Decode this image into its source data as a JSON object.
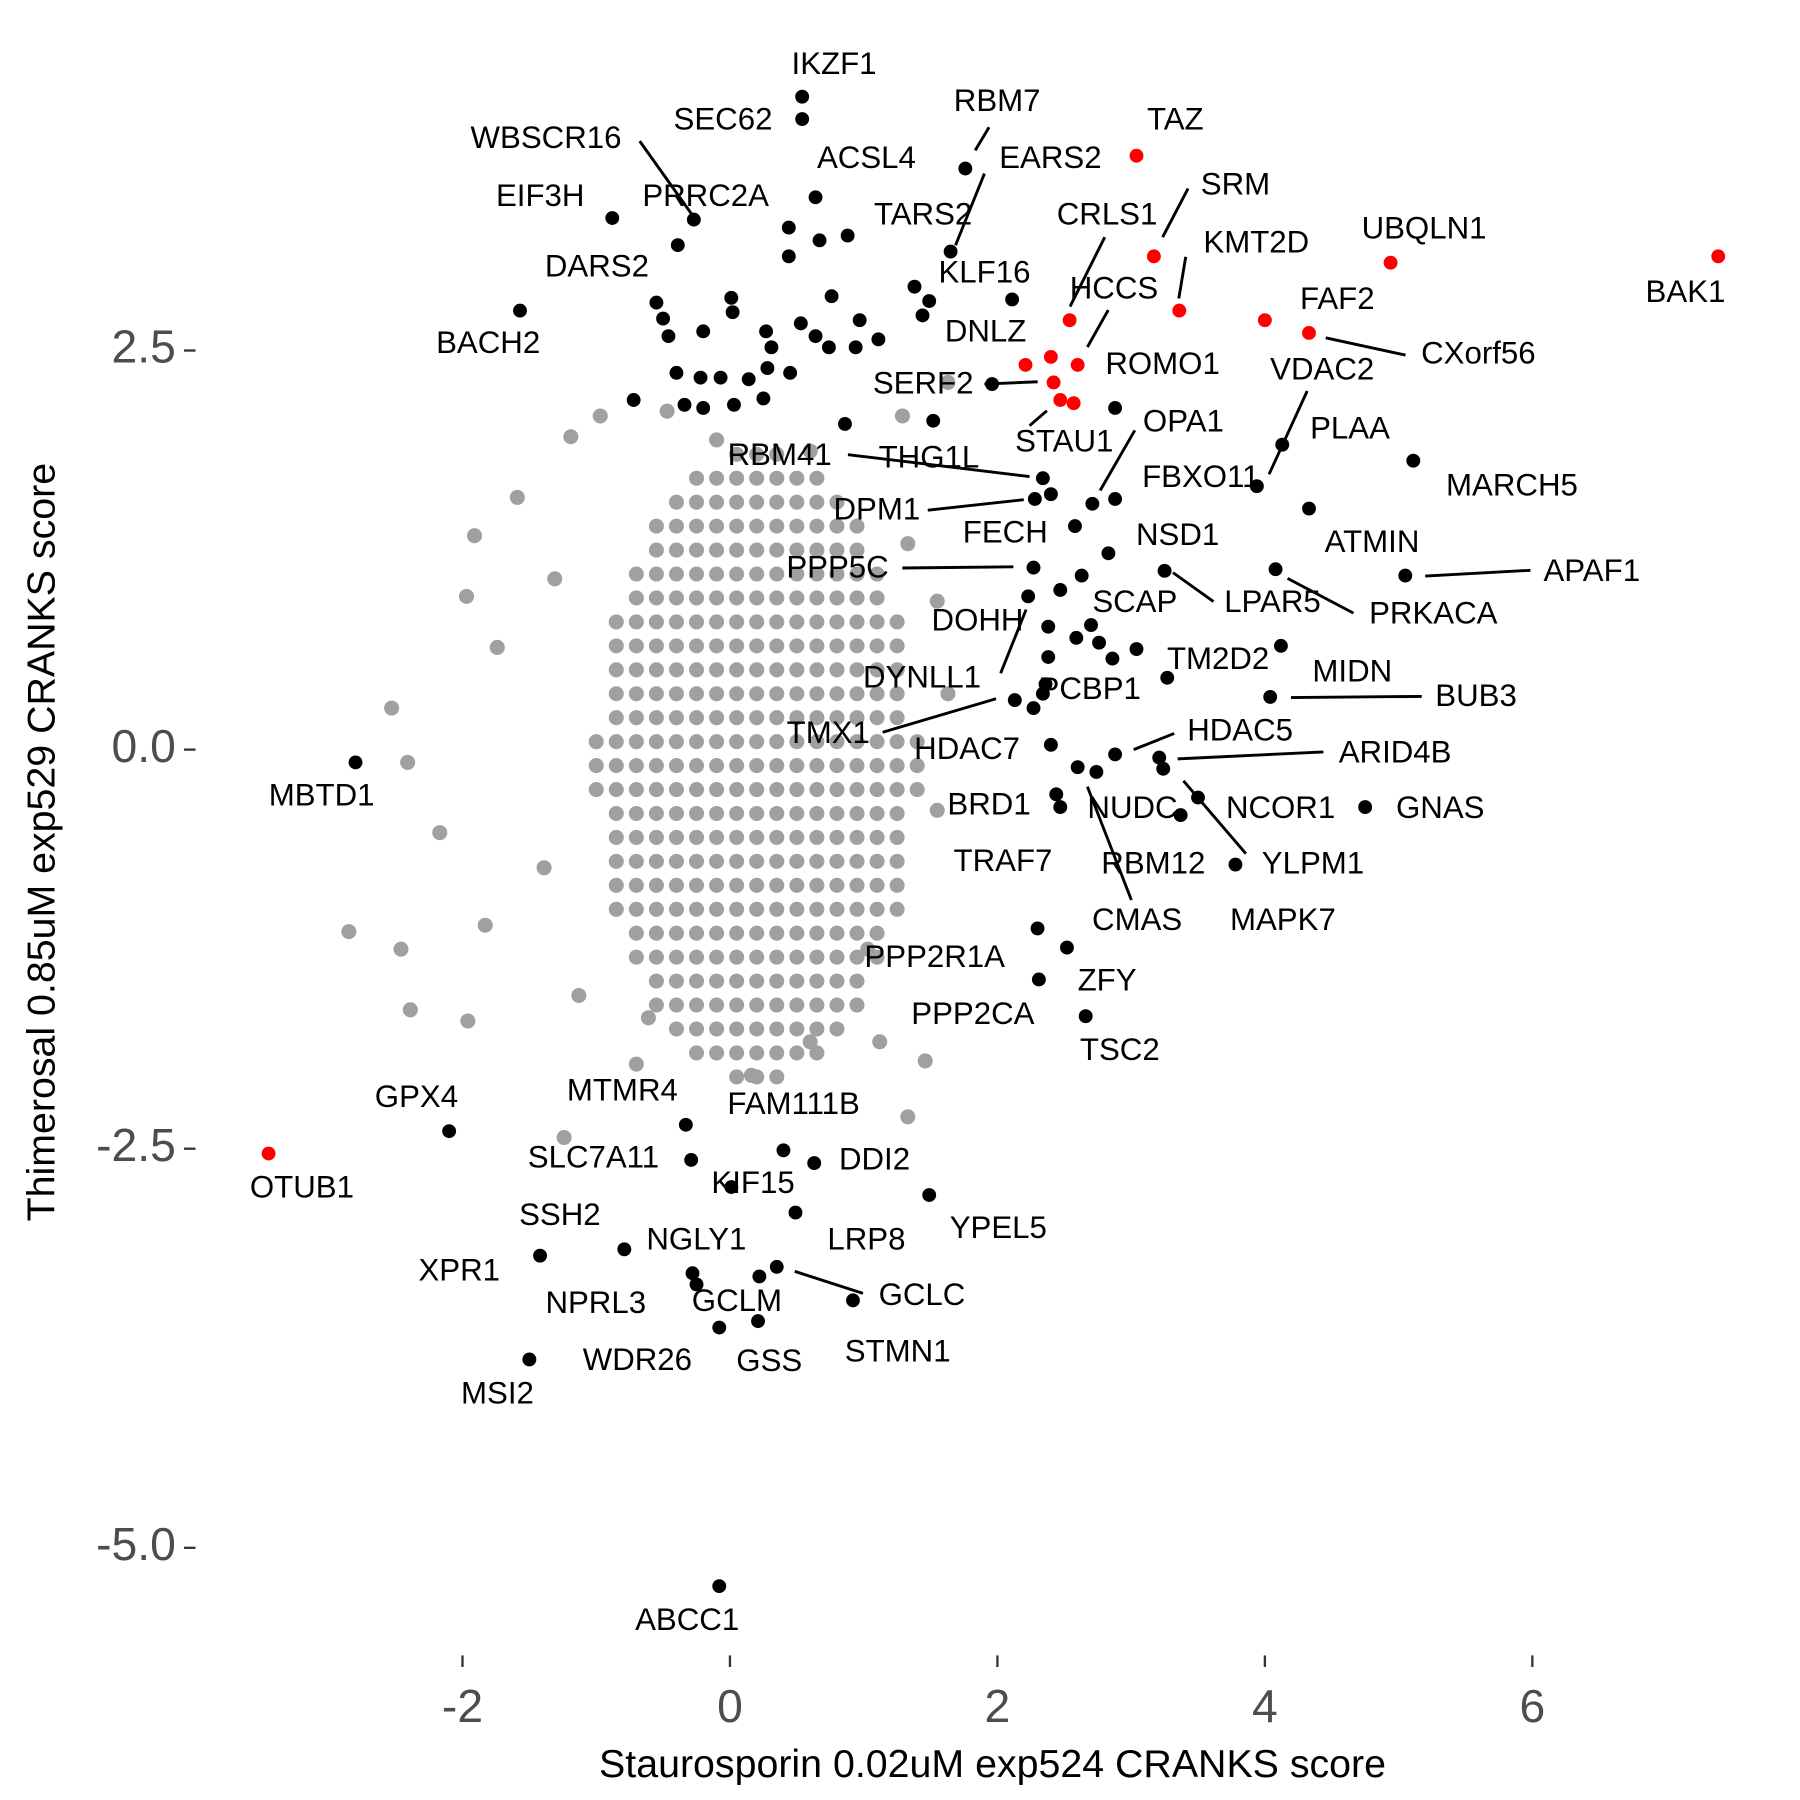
{
  "chart_data": {
    "type": "scatter",
    "x_label": "Staurosporin 0.02uM exp524 CRANKS score",
    "y_label": "Thimerosal 0.85uM exp529 CRANKS score",
    "xlim": [
      -4.0,
      7.8
    ],
    "ylim": [
      -5.6,
      4.4
    ],
    "xticks": [
      -2,
      0,
      2,
      4,
      6
    ],
    "yticks": [
      {
        "value": -5,
        "label": "-5.0"
      },
      -2.5,
      {
        "value": 0,
        "label": "0.0"
      },
      2.5
    ],
    "grid": false,
    "series": [
      {
        "color": "#a0a0a0",
        "x": [
          0.05,
          0.2,
          0.35,
          -0.25,
          -0.1,
          0.05,
          0.2,
          0.35,
          0.5,
          0.65,
          -0.4,
          -0.25,
          -0.1,
          0.05,
          0.2,
          0.35,
          0.5,
          0.65,
          0.8,
          -0.55,
          -0.4,
          -0.25,
          -0.1,
          0.05,
          0.2,
          0.35,
          0.5,
          0.65,
          0.8,
          0.95,
          -0.55,
          -0.4,
          -0.25,
          -0.1,
          0.05,
          0.2,
          0.35,
          0.5,
          0.65,
          0.8,
          0.95,
          -0.7,
          -0.55,
          -0.4,
          -0.25,
          -0.1,
          0.05,
          0.2,
          0.35,
          0.5,
          0.65,
          0.8,
          0.95,
          1.1,
          -0.7,
          -0.55,
          -0.4,
          -0.25,
          -0.1,
          0.05,
          0.2,
          0.35,
          0.5,
          0.65,
          0.8,
          0.95,
          1.1,
          -0.85,
          -0.7,
          -0.55,
          -0.4,
          -0.25,
          -0.1,
          0.05,
          0.2,
          0.35,
          0.5,
          0.65,
          0.8,
          0.95,
          1.1,
          1.25,
          -0.85,
          -0.7,
          -0.55,
          -0.4,
          -0.25,
          -0.1,
          0.05,
          0.2,
          0.35,
          0.5,
          0.65,
          0.8,
          0.95,
          1.1,
          1.25,
          -0.85,
          -0.7,
          -0.55,
          -0.4,
          -0.25,
          -0.1,
          0.05,
          0.2,
          0.35,
          0.5,
          0.65,
          0.8,
          0.95,
          1.1,
          1.25,
          -0.85,
          -0.7,
          -0.55,
          -0.4,
          -0.25,
          -0.1,
          0.05,
          0.2,
          0.35,
          0.5,
          0.65,
          0.8,
          0.95,
          1.1,
          1.25,
          -0.85,
          -0.7,
          -0.55,
          -0.4,
          -0.25,
          -0.1,
          0.05,
          0.2,
          0.35,
          0.5,
          0.65,
          0.8,
          0.95,
          1.1,
          1.25,
          -1,
          -0.85,
          -0.7,
          -0.55,
          -0.4,
          -0.25,
          -0.1,
          0.05,
          0.2,
          0.35,
          0.5,
          0.65,
          0.8,
          0.95,
          1.1,
          1.25,
          1.4,
          -1,
          -0.85,
          -0.7,
          -0.55,
          -0.4,
          -0.25,
          -0.1,
          0.05,
          0.2,
          0.35,
          0.5,
          0.65,
          0.8,
          0.95,
          1.1,
          1.25,
          1.4,
          -1,
          -0.85,
          -0.7,
          -0.55,
          -0.4,
          -0.25,
          -0.1,
          0.05,
          0.2,
          0.35,
          0.5,
          0.65,
          0.8,
          0.95,
          1.1,
          1.25,
          1.4,
          -0.85,
          -0.7,
          -0.55,
          -0.4,
          -0.25,
          -0.1,
          0.05,
          0.2,
          0.35,
          0.5,
          0.65,
          0.8,
          0.95,
          1.1,
          1.25,
          -0.85,
          -0.7,
          -0.55,
          -0.4,
          -0.25,
          -0.1,
          0.05,
          0.2,
          0.35,
          0.5,
          0.65,
          0.8,
          0.95,
          1.1,
          1.25,
          -0.85,
          -0.7,
          -0.55,
          -0.4,
          -0.25,
          -0.1,
          0.05,
          0.2,
          0.35,
          0.5,
          0.65,
          0.8,
          0.95,
          1.1,
          1.25,
          -0.85,
          -0.7,
          -0.55,
          -0.4,
          -0.25,
          -0.1,
          0.05,
          0.2,
          0.35,
          0.5,
          0.65,
          0.8,
          0.95,
          1.1,
          1.25,
          -0.85,
          -0.7,
          -0.55,
          -0.4,
          -0.25,
          -0.1,
          0.05,
          0.2,
          0.35,
          0.5,
          0.65,
          0.8,
          0.95,
          1.1,
          1.25,
          -0.7,
          -0.55,
          -0.4,
          -0.25,
          -0.1,
          0.05,
          0.2,
          0.35,
          0.5,
          0.65,
          0.8,
          0.95,
          1.1,
          -0.7,
          -0.55,
          -0.4,
          -0.25,
          -0.1,
          0.05,
          0.2,
          0.35,
          0.5,
          0.65,
          0.8,
          0.95,
          1.1,
          -0.55,
          -0.4,
          -0.25,
          -0.1,
          0.05,
          0.2,
          0.35,
          0.5,
          0.65,
          0.8,
          0.95,
          -0.55,
          -0.4,
          -0.25,
          -0.1,
          0.05,
          0.2,
          0.35,
          0.5,
          0.65,
          0.8,
          0.95,
          -0.4,
          -0.25,
          -0.1,
          0.05,
          0.2,
          0.35,
          0.5,
          0.65,
          0.8,
          -0.25,
          -0.1,
          0.05,
          0.2,
          0.35,
          0.5,
          0.65,
          0.05,
          0.2,
          0.35,
          -1.97,
          -1.91,
          -2.53,
          -2.41,
          -2.85,
          -2.46,
          -2.39,
          -1.96,
          -1.24,
          -1.19,
          -0.97,
          -0.47,
          1.33,
          1.46,
          1.12,
          1.33,
          1.63,
          1.29,
          -1.59,
          -1.74,
          -2.17,
          -1.83,
          -0.7,
          0.16,
          1.03,
          1.55,
          1.63,
          1.55,
          0.6,
          -0.1,
          -1.31,
          -1.39,
          -1.13,
          -0.61,
          0.6
        ],
        "values": [
          1.85,
          1.85,
          1.85,
          1.7,
          1.7,
          1.7,
          1.7,
          1.7,
          1.7,
          1.7,
          1.55,
          1.55,
          1.55,
          1.55,
          1.55,
          1.55,
          1.55,
          1.55,
          1.55,
          1.4,
          1.4,
          1.4,
          1.4,
          1.4,
          1.4,
          1.4,
          1.4,
          1.4,
          1.4,
          1.4,
          1.25,
          1.25,
          1.25,
          1.25,
          1.25,
          1.25,
          1.25,
          1.25,
          1.25,
          1.25,
          1.25,
          1.1,
          1.1,
          1.1,
          1.1,
          1.1,
          1.1,
          1.1,
          1.1,
          1.1,
          1.1,
          1.1,
          1.1,
          1.1,
          0.95,
          0.95,
          0.95,
          0.95,
          0.95,
          0.95,
          0.95,
          0.95,
          0.95,
          0.95,
          0.95,
          0.95,
          0.95,
          0.8,
          0.8,
          0.8,
          0.8,
          0.8,
          0.8,
          0.8,
          0.8,
          0.8,
          0.8,
          0.8,
          0.8,
          0.8,
          0.8,
          0.8,
          0.65,
          0.65,
          0.65,
          0.65,
          0.65,
          0.65,
          0.65,
          0.65,
          0.65,
          0.65,
          0.65,
          0.65,
          0.65,
          0.65,
          0.65,
          0.5,
          0.5,
          0.5,
          0.5,
          0.5,
          0.5,
          0.5,
          0.5,
          0.5,
          0.5,
          0.5,
          0.5,
          0.5,
          0.5,
          0.5,
          0.35,
          0.35,
          0.35,
          0.35,
          0.35,
          0.35,
          0.35,
          0.35,
          0.35,
          0.35,
          0.35,
          0.35,
          0.35,
          0.35,
          0.35,
          0.2,
          0.2,
          0.2,
          0.2,
          0.2,
          0.2,
          0.2,
          0.2,
          0.2,
          0.2,
          0.2,
          0.2,
          0.2,
          0.2,
          0.2,
          0.05,
          0.05,
          0.05,
          0.05,
          0.05,
          0.05,
          0.05,
          0.05,
          0.05,
          0.05,
          0.05,
          0.05,
          0.05,
          0.05,
          0.05,
          0.05,
          0.05,
          -0.1,
          -0.1,
          -0.1,
          -0.1,
          -0.1,
          -0.1,
          -0.1,
          -0.1,
          -0.1,
          -0.1,
          -0.1,
          -0.1,
          -0.1,
          -0.1,
          -0.1,
          -0.1,
          -0.1,
          -0.25,
          -0.25,
          -0.25,
          -0.25,
          -0.25,
          -0.25,
          -0.25,
          -0.25,
          -0.25,
          -0.25,
          -0.25,
          -0.25,
          -0.25,
          -0.25,
          -0.25,
          -0.25,
          -0.25,
          -0.4,
          -0.4,
          -0.4,
          -0.4,
          -0.4,
          -0.4,
          -0.4,
          -0.4,
          -0.4,
          -0.4,
          -0.4,
          -0.4,
          -0.4,
          -0.4,
          -0.4,
          -0.55,
          -0.55,
          -0.55,
          -0.55,
          -0.55,
          -0.55,
          -0.55,
          -0.55,
          -0.55,
          -0.55,
          -0.55,
          -0.55,
          -0.55,
          -0.55,
          -0.55,
          -0.7,
          -0.7,
          -0.7,
          -0.7,
          -0.7,
          -0.7,
          -0.7,
          -0.7,
          -0.7,
          -0.7,
          -0.7,
          -0.7,
          -0.7,
          -0.7,
          -0.7,
          -0.85,
          -0.85,
          -0.85,
          -0.85,
          -0.85,
          -0.85,
          -0.85,
          -0.85,
          -0.85,
          -0.85,
          -0.85,
          -0.85,
          -0.85,
          -0.85,
          -0.85,
          -1,
          -1,
          -1,
          -1,
          -1,
          -1,
          -1,
          -1,
          -1,
          -1,
          -1,
          -1,
          -1,
          -1,
          -1,
          -1.15,
          -1.15,
          -1.15,
          -1.15,
          -1.15,
          -1.15,
          -1.15,
          -1.15,
          -1.15,
          -1.15,
          -1.15,
          -1.15,
          -1.15,
          -1.3,
          -1.3,
          -1.3,
          -1.3,
          -1.3,
          -1.3,
          -1.3,
          -1.3,
          -1.3,
          -1.3,
          -1.3,
          -1.3,
          -1.3,
          -1.45,
          -1.45,
          -1.45,
          -1.45,
          -1.45,
          -1.45,
          -1.45,
          -1.45,
          -1.45,
          -1.45,
          -1.45,
          -1.6,
          -1.6,
          -1.6,
          -1.6,
          -1.6,
          -1.6,
          -1.6,
          -1.6,
          -1.6,
          -1.6,
          -1.6,
          -1.75,
          -1.75,
          -1.75,
          -1.75,
          -1.75,
          -1.75,
          -1.75,
          -1.75,
          -1.75,
          -1.9,
          -1.9,
          -1.9,
          -1.9,
          -1.9,
          -1.9,
          -1.9,
          -2.05,
          -2.05,
          -2.05,
          0.96,
          1.34,
          0.26,
          -0.08,
          -1.14,
          -1.25,
          -1.63,
          -1.7,
          -2.43,
          1.96,
          2.09,
          2.12,
          -2.3,
          -1.95,
          -1.83,
          1.29,
          2.3,
          2.09,
          1.58,
          0.64,
          -0.52,
          -1.1,
          -1.97,
          -2.04,
          -1.25,
          -0.38,
          0.35,
          0.93,
          1.87,
          1.94,
          1.07,
          -0.74,
          -1.54,
          -1.68,
          -1.83
        ]
      },
      {
        "color": "#000000",
        "x": [
          0.54,
          0.54,
          1.76,
          1.65,
          0.64,
          -0.27,
          -0.88,
          -0.39,
          0.88,
          -0.55,
          -1.57,
          2.11,
          3.94,
          4.13,
          5.11,
          2.71,
          2.88,
          2.34,
          2.4,
          2.28,
          4.33,
          2.58,
          2.83,
          2.27,
          5.05,
          3.25,
          4.08,
          2.63,
          2.38,
          2.23,
          4.12,
          3.04,
          2.36,
          4.04,
          2.13,
          2.4,
          2.88,
          3.21,
          2.44,
          2.6,
          3.5,
          4.75,
          2.47,
          3.37,
          3.24,
          2.74,
          3.78,
          2.3,
          2.52,
          2.31,
          2.66,
          -2.8,
          -2.1,
          -0.33,
          0.4,
          -0.29,
          0.01,
          0.63,
          1.49,
          0.49,
          -0.79,
          -1.42,
          -0.28,
          -0.25,
          0.22,
          0.35,
          0.92,
          -0.08,
          0.21,
          -1.5,
          -0.08,
          0.44,
          0.67,
          0.44,
          -0.5,
          -0.46,
          -0.2,
          0.01,
          0.02,
          0.27,
          0.31,
          0.53,
          0.74,
          0.94,
          1.11,
          0.97,
          0.76,
          0.64,
          -0.4,
          -0.22,
          -0.07,
          0.14,
          0.28,
          0.45,
          -0.34,
          -0.2,
          0.03,
          0.25,
          -0.72,
          0.86,
          1.38,
          1.49,
          1.44,
          1.52,
          1.96,
          2.88,
          2.38,
          2.59,
          2.7,
          2.76,
          2.86,
          3.27,
          2.27,
          2.34,
          2.47
        ],
        "values": [
          4.09,
          3.95,
          3.64,
          3.12,
          3.46,
          3.32,
          3.33,
          3.16,
          3.22,
          2.8,
          2.75,
          2.82,
          1.65,
          1.91,
          1.81,
          1.54,
          1.57,
          1.7,
          1.6,
          1.57,
          1.51,
          1.4,
          1.23,
          1.14,
          1.09,
          1.12,
          1.13,
          1.09,
          0.77,
          0.96,
          0.65,
          0.63,
          0.41,
          0.33,
          0.31,
          0.03,
          -0.03,
          -0.05,
          -0.28,
          -0.11,
          -0.3,
          -0.36,
          -0.36,
          -0.41,
          -0.12,
          -0.14,
          -0.72,
          -1.12,
          -1.24,
          -1.44,
          -1.67,
          -0.08,
          -2.39,
          -2.35,
          -2.51,
          -2.57,
          -2.74,
          -2.59,
          -2.79,
          -2.9,
          -3.13,
          -3.17,
          -3.28,
          -3.35,
          -3.3,
          -3.24,
          -3.45,
          -3.62,
          -3.58,
          -3.82,
          -5.24,
          3.27,
          3.19,
          3.09,
          2.7,
          2.59,
          2.62,
          2.83,
          2.74,
          2.62,
          2.52,
          2.67,
          2.52,
          2.52,
          2.57,
          2.69,
          2.84,
          2.59,
          2.36,
          2.33,
          2.33,
          2.32,
          2.39,
          2.36,
          2.16,
          2.14,
          2.16,
          2.2,
          2.19,
          2.04,
          2.9,
          2.81,
          2.72,
          2.06,
          2.29,
          2.14,
          0.58,
          0.7,
          0.78,
          0.67,
          0.57,
          0.45,
          0.26,
          0.35,
          1.0
        ],
        "labels": [
          "IKZF1",
          "SEC62",
          "RBM7",
          "EARS2",
          "ACSL4",
          "WBSCR16",
          "EIF3H",
          "PRRC2A",
          "TARS2",
          "DARS2",
          "BACH2",
          "KLF16",
          "VDAC2",
          "PLAA",
          "MARCH5",
          "OPA1",
          "FBXO11",
          "RBM41",
          "THG1L",
          "DPM1",
          "ATMIN",
          "FECH",
          "NSD1",
          "PPP5C",
          "APAF1",
          "LPAR5",
          "PRKACA",
          "SCAP",
          "DOHH",
          "DYNLL1",
          "MIDN",
          "TM2D2",
          "PCBP1",
          "BUB3",
          "TMX1",
          "HDAC7",
          "HDAC5",
          "ARID4B",
          "BRD1",
          "NUDC",
          "NCOR1",
          "GNAS",
          "TRAF7",
          "RBM12",
          "YLPM1",
          "CMAS",
          "MAPK7",
          "PPP2R1A",
          "ZFY",
          "PPP2CA",
          "TSC2",
          "MBTD1",
          "GPX4",
          "MTMR4",
          "FAM111B",
          "SLC7A11",
          "KIF15",
          "DDI2",
          "YPEL5",
          "LRP8",
          "SSH2",
          "XPR1",
          "NGLY1",
          "NPRL3",
          "GCLM",
          "GCLC",
          "STMN1",
          "WDR26",
          "GSS",
          "MSI2",
          "ABCC1",
          null,
          null,
          null,
          null,
          null,
          null,
          null,
          null,
          null,
          null,
          null,
          null,
          null,
          null,
          null,
          null,
          null,
          null,
          null,
          null,
          null,
          null,
          null,
          null,
          null,
          null,
          null,
          null,
          null,
          null,
          null,
          null,
          null,
          null,
          null,
          null,
          null,
          null,
          null,
          null,
          null,
          null,
          null,
          null
        ]
      },
      {
        "color": "#ff0000",
        "x": [
          3.04,
          3.17,
          4.94,
          7.39,
          3.36,
          2.54,
          4.0,
          4.33,
          2.6,
          2.4,
          2.42,
          2.47,
          2.21,
          -3.45,
          2.57
        ],
        "values": [
          3.72,
          3.09,
          3.05,
          3.09,
          2.75,
          2.69,
          2.69,
          2.61,
          2.41,
          2.46,
          2.3,
          2.19,
          2.41,
          -2.53,
          2.17
        ],
        "labels": [
          "TAZ",
          "SRM",
          "UBQLN1",
          "BAK1",
          "KMT2D",
          "CRLS1",
          "FAF2",
          "CXorf56",
          "HCCS",
          "ROMO1",
          "SERF2",
          "STAU1",
          "DNLZ",
          "OTUB1",
          null
        ]
      }
    ]
  }
}
